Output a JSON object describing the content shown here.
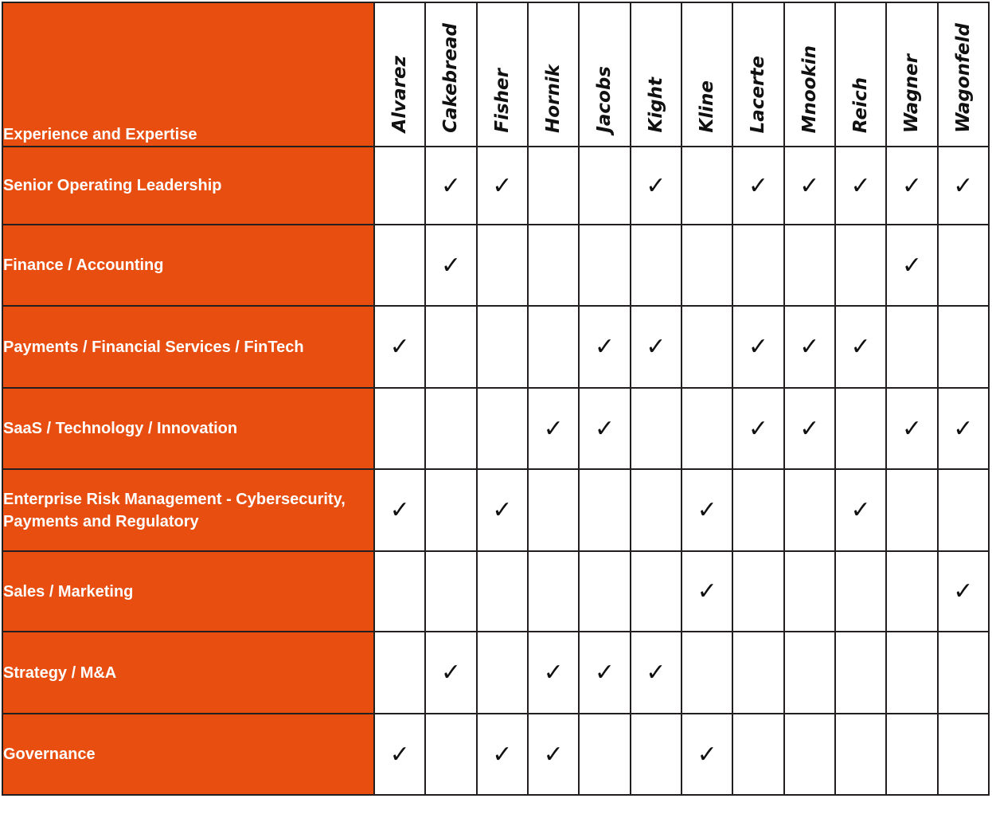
{
  "header": {
    "title": "Experience and Expertise"
  },
  "directors": [
    "Alvarez",
    "Cakebread",
    "Fisher",
    "Hornik",
    "Jacobs",
    "Kight",
    "Kline",
    "Lacerte",
    "Mnookin",
    "Reich",
    "Wagner",
    "Wagonfeld"
  ],
  "check_symbol": "✓",
  "colors": {
    "accent": "#e84e10",
    "border": "#231f20"
  },
  "rows": [
    {
      "label": "Senior Operating Leadership",
      "checks": [
        false,
        true,
        true,
        false,
        false,
        true,
        false,
        true,
        true,
        true,
        true,
        true
      ]
    },
    {
      "label": "Finance / Accounting",
      "checks": [
        false,
        true,
        false,
        false,
        false,
        false,
        false,
        false,
        false,
        false,
        true,
        false
      ]
    },
    {
      "label": "Payments / Financial Services / FinTech",
      "checks": [
        true,
        false,
        false,
        false,
        true,
        true,
        false,
        true,
        true,
        true,
        false,
        false
      ]
    },
    {
      "label": "SaaS / Technology / Innovation",
      "checks": [
        false,
        false,
        false,
        true,
        true,
        false,
        false,
        true,
        true,
        false,
        true,
        true
      ]
    },
    {
      "label": "Enterprise Risk Management - Cybersecurity, Payments and Regulatory",
      "checks": [
        true,
        false,
        true,
        false,
        false,
        false,
        true,
        false,
        false,
        true,
        false,
        false
      ]
    },
    {
      "label": "Sales / Marketing",
      "checks": [
        false,
        false,
        false,
        false,
        false,
        false,
        true,
        false,
        false,
        false,
        false,
        true
      ]
    },
    {
      "label": "Strategy / M&A",
      "checks": [
        false,
        true,
        false,
        true,
        true,
        true,
        false,
        false,
        false,
        false,
        false,
        false
      ]
    },
    {
      "label": "Governance",
      "checks": [
        true,
        false,
        true,
        true,
        false,
        false,
        true,
        false,
        false,
        false,
        false,
        false
      ]
    }
  ]
}
